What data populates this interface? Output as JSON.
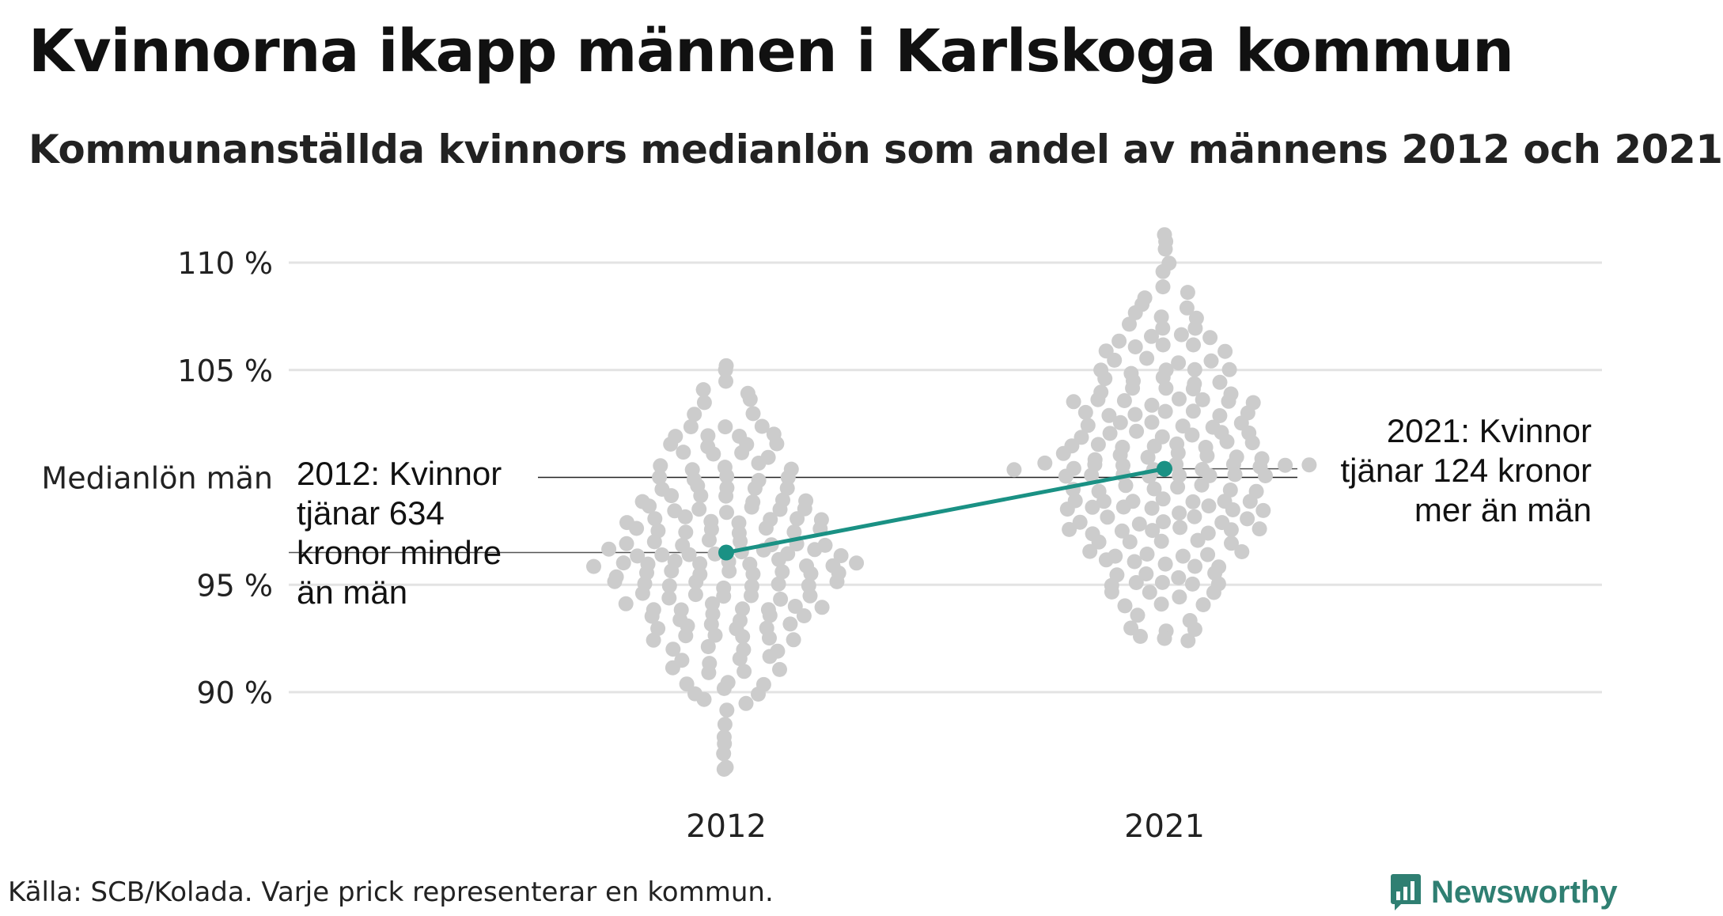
{
  "chart_data": {
    "type": "scatter",
    "title": "Kvinnorna ikapp männen i Karlskoga kommun",
    "subtitle": "Kommunanställda kvinnors medianlön som andel av männens 2012 och 2021",
    "categories": [
      "2012",
      "2021"
    ],
    "y_ticks": [
      {
        "value": 90,
        "label": "90 %"
      },
      {
        "value": 95,
        "label": "95 %"
      },
      {
        "value": 100,
        "label": "Medianlön män"
      },
      {
        "value": 105,
        "label": "105 %"
      },
      {
        "value": 110,
        "label": "110 %"
      }
    ],
    "ylim": [
      86,
      112
    ],
    "grid": true,
    "background_points": {
      "2012": {
        "median": 96.5,
        "min": 86.5,
        "max": 105.2,
        "values": [
          86.5,
          89.0,
          89.2,
          89.7,
          90.1,
          90.6,
          90.8,
          91.0,
          91.3,
          91.6,
          91.8,
          92.0,
          92.3,
          92.5,
          92.8,
          93.0,
          93.2,
          93.5,
          93.7,
          94.0,
          94.2,
          94.5,
          94.7,
          95.0,
          95.2,
          95.5,
          95.7,
          96.0,
          96.2,
          96.5,
          96.7,
          97.0,
          97.2,
          97.5,
          97.8,
          98.0,
          98.3,
          98.6,
          98.9,
          99.2,
          99.5,
          99.8,
          100.1,
          100.4,
          100.7,
          101.0,
          101.3,
          101.6,
          101.9,
          102.3,
          102.8,
          103.3,
          103.8,
          104.4,
          105.2
        ]
      },
      "2021": {
        "median": 100.4,
        "min": 92.5,
        "max": 111.3,
        "values": [
          92.5,
          93.0,
          93.4,
          93.8,
          94.2,
          94.7,
          95.1,
          95.5,
          95.9,
          96.3,
          96.7,
          97.0,
          97.3,
          97.6,
          97.9,
          98.2,
          98.5,
          98.8,
          99.1,
          99.4,
          99.7,
          100.0,
          100.3,
          100.6,
          100.9,
          101.2,
          101.5,
          101.8,
          102.1,
          102.4,
          102.7,
          103.0,
          103.3,
          103.6,
          103.9,
          104.2,
          104.5,
          104.8,
          105.1,
          105.4,
          105.7,
          106.0,
          106.3,
          106.6,
          106.9,
          107.3,
          107.7,
          108.1,
          108.5,
          109.0,
          109.5,
          110.0,
          110.6,
          111.3
        ]
      }
    },
    "series": [
      {
        "values": [
          96.5,
          100.4
        ],
        "color": "#1a9184"
      }
    ],
    "annotations": [
      {
        "category": "2012",
        "lines": [
          "2012: Kvinnor",
          "tjänar 634",
          "kronor mindre",
          "än män"
        ]
      },
      {
        "category": "2021",
        "lines": [
          "2021: Kvinnor",
          "tjänar 124 kronor",
          "mer än män"
        ]
      }
    ],
    "colors": {
      "points": "#cccccc",
      "highlight": "#1a9184",
      "grid": "#e3e3e3"
    }
  },
  "source": "Källa: SCB/Kolada. Varje prick representerar en kommun.",
  "brand": {
    "name": "Newsworthy",
    "logo_icon": "bar-chart-badge-icon",
    "color": "#2f7f72"
  }
}
